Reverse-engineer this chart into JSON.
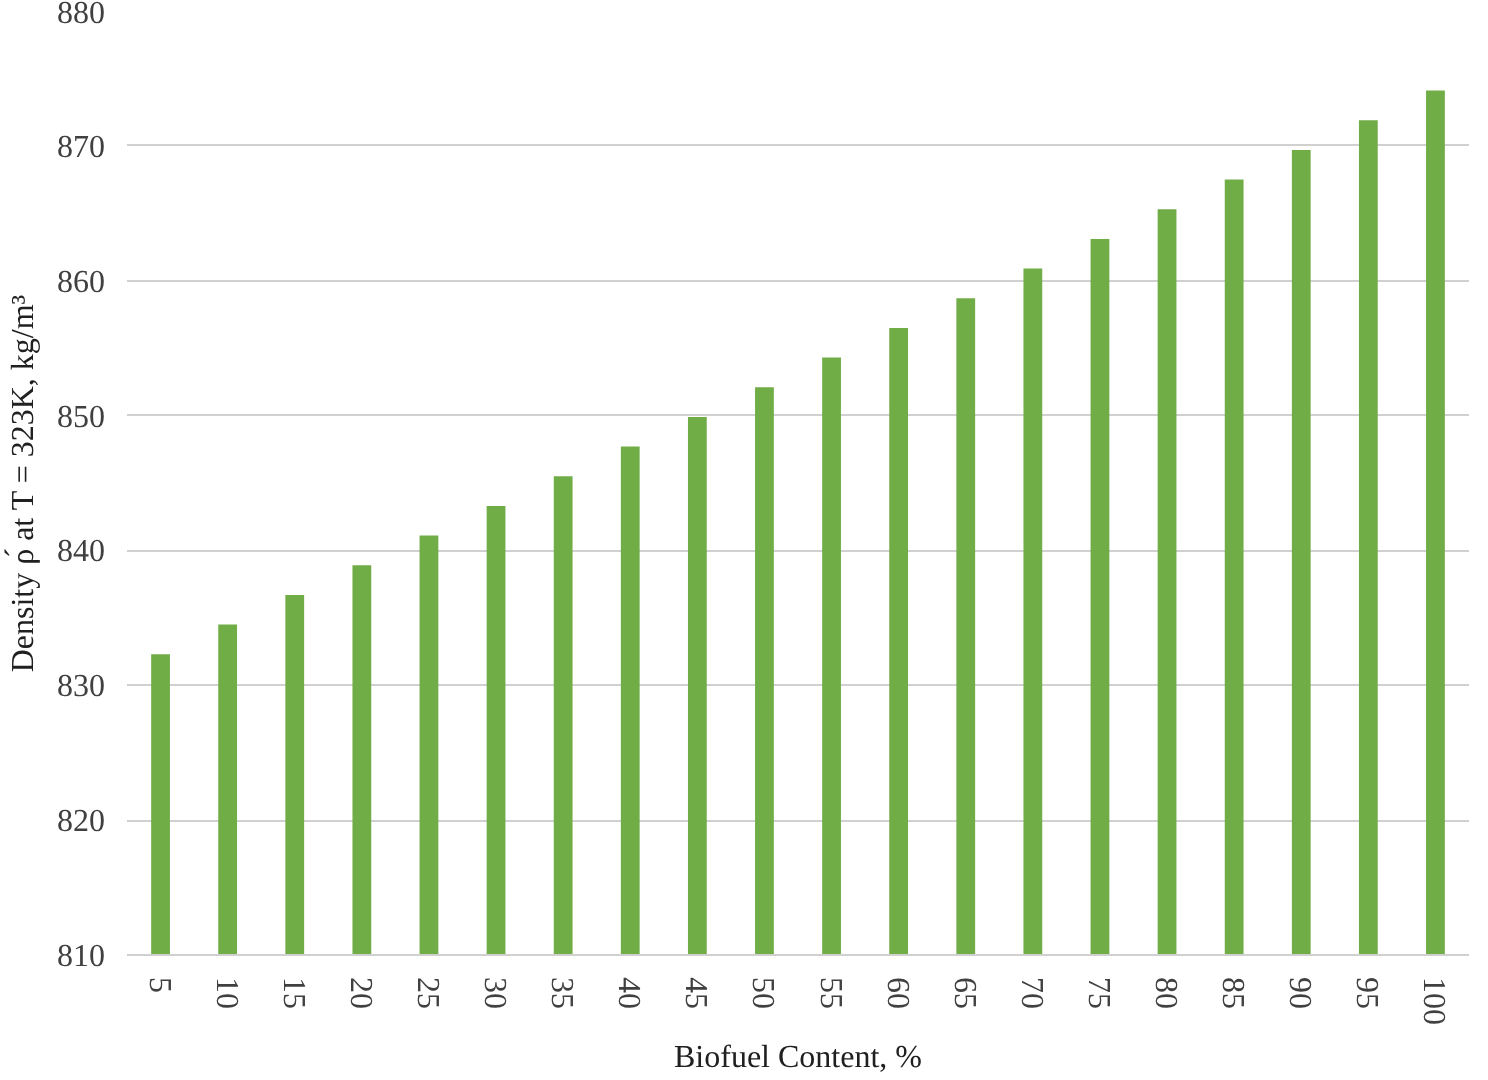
{
  "chart_data": {
    "type": "bar",
    "xlabel": "Biofuel Content, %",
    "ylabel": "Density ρ́ at T = 323K, kg/m³",
    "categories": [
      "5",
      "10",
      "15",
      "20",
      "25",
      "30",
      "35",
      "40",
      "45",
      "50",
      "55",
      "60",
      "65",
      "70",
      "75",
      "80",
      "85",
      "90",
      "95",
      "100"
    ],
    "values": [
      832.3,
      834.5,
      836.7,
      838.9,
      841.1,
      843.3,
      845.5,
      847.7,
      849.9,
      852.1,
      854.3,
      856.5,
      858.7,
      860.9,
      863.1,
      865.3,
      867.5,
      869.7,
      871.9,
      874.1
    ],
    "color": "#70ad47",
    "ylim": [
      810,
      880
    ],
    "yticks": [
      810,
      820,
      830,
      840,
      850,
      860,
      870,
      880
    ],
    "grid": "y"
  }
}
